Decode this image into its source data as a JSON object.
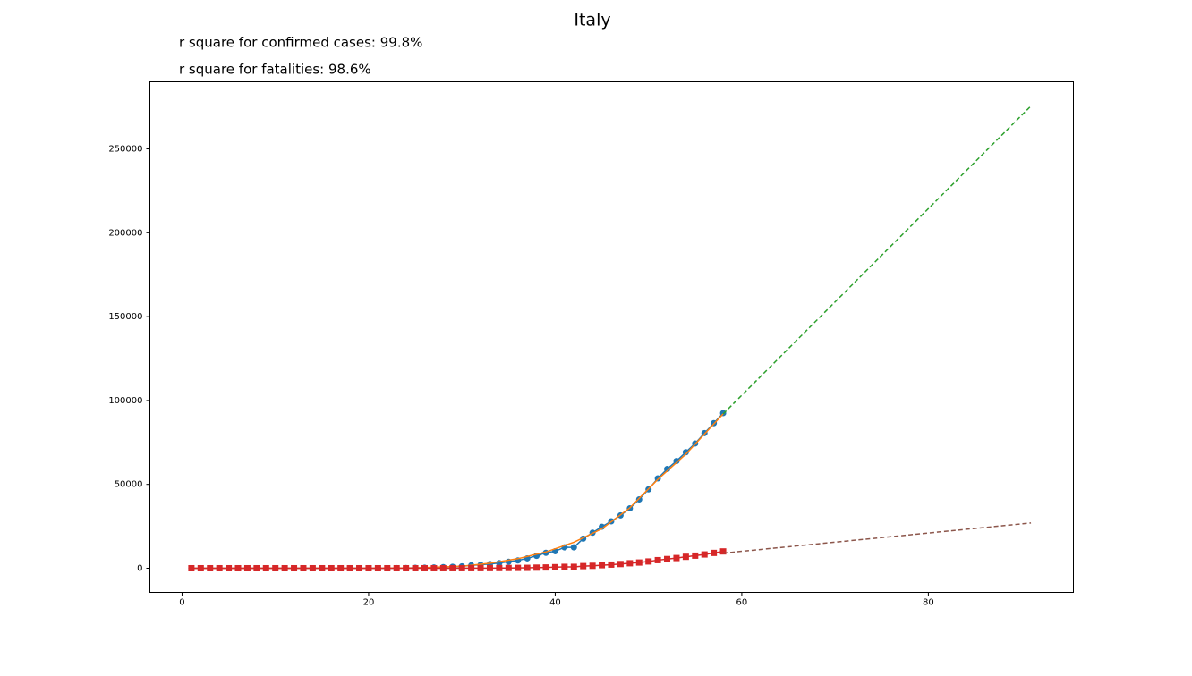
{
  "chart_data": {
    "type": "line",
    "title": "Italy",
    "annotations": [
      "r square for confirmed cases: 99.8%",
      "r square for fatalities: 98.6%"
    ],
    "xlim": [
      -3.45,
      95.55
    ],
    "ylim": [
      -14400,
      290000
    ],
    "xticks": [
      0,
      20,
      40,
      60,
      80
    ],
    "yticks": [
      0,
      50000,
      100000,
      150000,
      200000,
      250000
    ],
    "grid": false,
    "series": [
      {
        "color": "#1f77b4",
        "marker": "circle",
        "dash": false,
        "x": [
          1,
          2,
          3,
          4,
          5,
          6,
          7,
          8,
          9,
          10,
          11,
          12,
          13,
          14,
          15,
          16,
          17,
          18,
          19,
          20,
          21,
          22,
          23,
          24,
          25,
          26,
          27,
          28,
          29,
          30,
          31,
          32,
          33,
          34,
          35,
          36,
          37,
          38,
          39,
          40,
          41,
          42,
          43,
          44,
          45,
          46,
          47,
          48,
          49,
          50,
          51,
          52,
          53,
          54,
          55,
          56,
          57,
          58
        ],
        "values": [
          2,
          2,
          2,
          2,
          2,
          2,
          2,
          3,
          3,
          3,
          3,
          3,
          3,
          3,
          3,
          3,
          3,
          3,
          3,
          3,
          3,
          20,
          62,
          155,
          229,
          322,
          453,
          655,
          888,
          1128,
          1694,
          2036,
          2502,
          3089,
          3858,
          4636,
          5883,
          7375,
          9172,
          10149,
          12462,
          12462,
          17660,
          21157,
          24747,
          27980,
          31506,
          35713,
          41035,
          47021,
          53578,
          59138,
          63927,
          69176,
          74386,
          80589,
          86498,
          92472
        ]
      },
      {
        "color": "#ff7f0e",
        "marker": null,
        "dash": false,
        "x": [
          1,
          10,
          20,
          25,
          30,
          33,
          36,
          39,
          42,
          45,
          48,
          51,
          54,
          58
        ],
        "values": [
          0,
          0,
          0,
          200,
          1200,
          3000,
          5700,
          9700,
          15500,
          23500,
          36000,
          53000,
          68000,
          92000
        ]
      },
      {
        "color": "#2ca02c",
        "marker": null,
        "dash": true,
        "x": [
          58,
          91
        ],
        "values": [
          92000,
          275600
        ]
      },
      {
        "color": "#d62728",
        "marker": "square",
        "dash": false,
        "x": [
          1,
          2,
          3,
          4,
          5,
          6,
          7,
          8,
          9,
          10,
          11,
          12,
          13,
          14,
          15,
          16,
          17,
          18,
          19,
          20,
          21,
          22,
          23,
          24,
          25,
          26,
          27,
          28,
          29,
          30,
          31,
          32,
          33,
          34,
          35,
          36,
          37,
          38,
          39,
          40,
          41,
          42,
          43,
          44,
          45,
          46,
          47,
          48,
          49,
          50,
          51,
          52,
          53,
          54,
          55,
          56,
          57,
          58
        ],
        "values": [
          0,
          0,
          0,
          0,
          0,
          0,
          0,
          0,
          0,
          0,
          0,
          0,
          0,
          0,
          0,
          0,
          0,
          0,
          0,
          0,
          0,
          1,
          2,
          3,
          7,
          10,
          12,
          17,
          21,
          29,
          34,
          52,
          79,
          107,
          148,
          197,
          233,
          366,
          463,
          631,
          827,
          827,
          1266,
          1441,
          1809,
          2158,
          2503,
          2978,
          3405,
          4032,
          4825,
          5476,
          6077,
          6820,
          7503,
          8215,
          9134,
          10023
        ]
      },
      {
        "color": "#8c564b",
        "marker": null,
        "dash": true,
        "x": [
          58,
          91
        ],
        "values": [
          9000,
          27000
        ]
      }
    ]
  }
}
